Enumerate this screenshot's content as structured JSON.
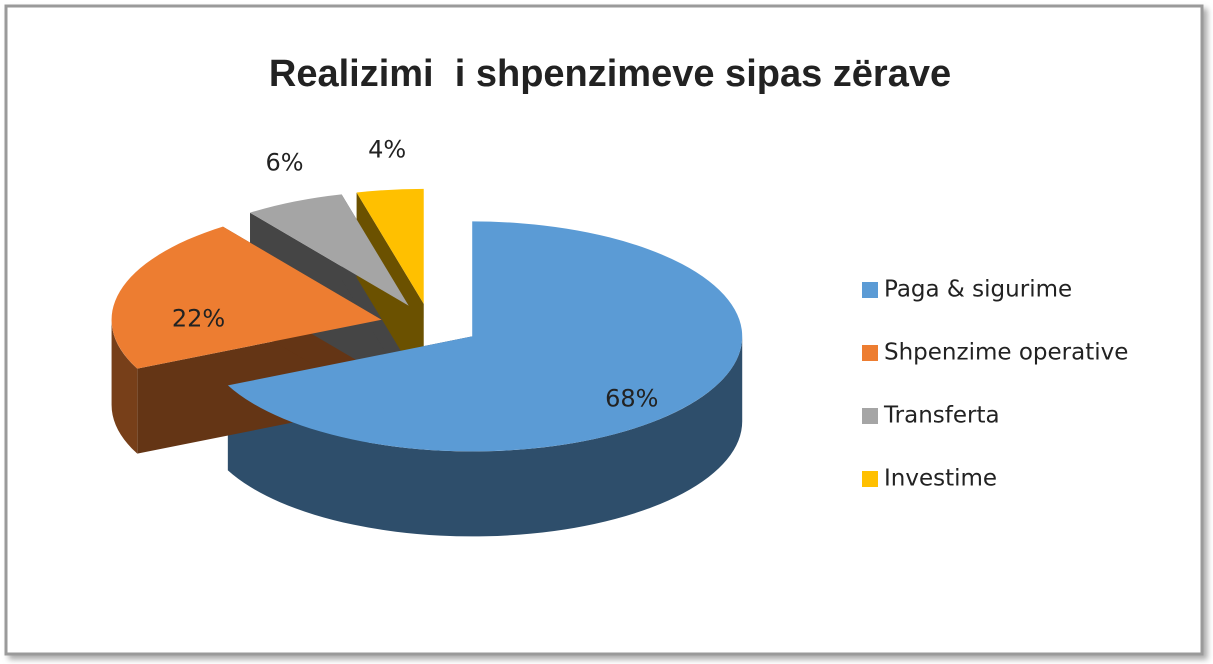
{
  "chart_data": {
    "type": "pie",
    "title": "Realizimi  i shpenzimeve sipas zërave",
    "categories": [
      "Paga & sigurime",
      "Shpenzime operative",
      "Transferta",
      "Investime"
    ],
    "values": [
      68,
      22,
      6,
      4
    ],
    "value_labels": [
      "68%",
      "22%",
      "6%",
      "4%"
    ],
    "colors": [
      "#5b9bd5",
      "#ed7d31",
      "#a5a5a5",
      "#ffc000"
    ],
    "legend": "right"
  }
}
